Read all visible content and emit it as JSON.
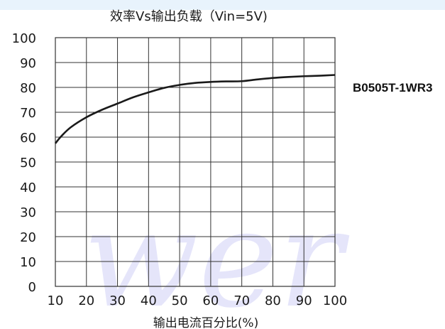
{
  "colors": {
    "line": "#1a1a1a",
    "grid": "#333333",
    "watermark": "#3f3fe0"
  },
  "chart_data": {
    "type": "line",
    "title": "效率Vs输出负载（Vin=5V)",
    "xlabel": "输出电流百分比(%)",
    "ylabel": "",
    "xlim": [
      10,
      100
    ],
    "ylim": [
      0,
      100
    ],
    "x_ticks": [
      "10",
      "20",
      "30",
      "40",
      "50",
      "60",
      "70",
      "80",
      "90",
      "100"
    ],
    "y_ticks": [
      "0",
      "10",
      "20",
      "30",
      "40",
      "50",
      "60",
      "70",
      "80",
      "90",
      "100"
    ],
    "grid": true,
    "legend_position": "right",
    "series": [
      {
        "name": "B0505T-1WR3",
        "x": [
          10,
          12,
          15,
          20,
          25,
          30,
          35,
          40,
          45,
          50,
          55,
          60,
          65,
          70,
          75,
          80,
          85,
          90,
          95,
          100
        ],
        "y": [
          57.5,
          60.5,
          64,
          68,
          71,
          73.5,
          76,
          78,
          79.8,
          81,
          81.8,
          82.2,
          82.4,
          82.5,
          83.2,
          83.8,
          84.2,
          84.5,
          84.7,
          85
        ]
      }
    ]
  },
  "watermark_text": "wer"
}
